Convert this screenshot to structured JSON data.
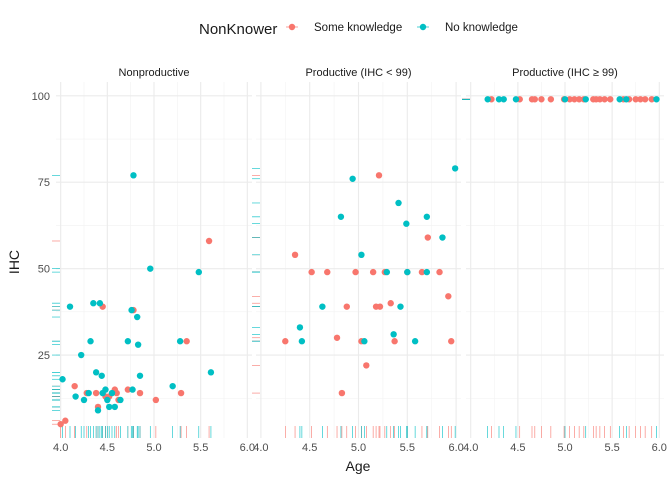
{
  "chart_data": {
    "type": "scatter",
    "xlabel": "Age",
    "ylabel": "IHC",
    "legend": {
      "title": "NonKnower",
      "position": "top",
      "entries": [
        {
          "name": "Some knowledge",
          "color": "#F8766D"
        },
        {
          "name": "No knowledge",
          "color": "#00BFC4"
        }
      ]
    },
    "xlim": [
      3.95,
      6.05
    ],
    "ylim": [
      1,
      104
    ],
    "x_ticks": [
      4.0,
      4.5,
      5.0,
      5.5,
      6.0
    ],
    "x_tick_labels": [
      "4.0",
      "4.5",
      "5.0",
      "5.5",
      "6.0"
    ],
    "y_ticks": [
      25,
      50,
      75,
      100
    ],
    "y_tick_labels": [
      "25",
      "50",
      "75",
      "100"
    ],
    "grid": true,
    "rug": true,
    "panels": [
      {
        "strip": "Nonproductive",
        "series": [
          {
            "name": "Some knowledge",
            "points": [
              [
                4.0,
                5
              ],
              [
                4.05,
                6
              ],
              [
                4.15,
                16
              ],
              [
                4.28,
                14
              ],
              [
                4.38,
                14
              ],
              [
                4.4,
                10
              ],
              [
                4.45,
                39
              ],
              [
                4.48,
                13
              ],
              [
                4.52,
                13
              ],
              [
                4.58,
                15
              ],
              [
                4.6,
                14
              ],
              [
                4.62,
                12
              ],
              [
                4.72,
                15
              ],
              [
                4.78,
                38
              ],
              [
                4.85,
                14
              ],
              [
                5.02,
                12
              ],
              [
                5.29,
                14
              ],
              [
                5.35,
                29
              ],
              [
                5.59,
                58
              ]
            ]
          },
          {
            "name": "No knowledge",
            "points": [
              [
                4.02,
                18
              ],
              [
                4.1,
                39
              ],
              [
                4.16,
                13
              ],
              [
                4.22,
                25
              ],
              [
                4.25,
                12
              ],
              [
                4.3,
                14
              ],
              [
                4.32,
                29
              ],
              [
                4.35,
                40
              ],
              [
                4.38,
                20
              ],
              [
                4.4,
                9
              ],
              [
                4.42,
                40
              ],
              [
                4.44,
                19
              ],
              [
                4.45,
                14
              ],
              [
                4.48,
                15
              ],
              [
                4.5,
                12
              ],
              [
                4.52,
                10
              ],
              [
                4.55,
                14
              ],
              [
                4.58,
                10
              ],
              [
                4.64,
                12
              ],
              [
                4.72,
                29
              ],
              [
                4.76,
                38
              ],
              [
                4.78,
                77
              ],
              [
                4.82,
                36
              ],
              [
                4.83,
                28
              ],
              [
                4.85,
                19
              ],
              [
                4.96,
                50
              ],
              [
                5.2,
                16
              ],
              [
                5.28,
                29
              ],
              [
                5.48,
                49
              ],
              [
                5.61,
                20
              ],
              [
                4.77,
                15
              ]
            ]
          }
        ]
      },
      {
        "strip": "Productive (IHC < 99)",
        "series": [
          {
            "name": "Some knowledge",
            "points": [
              [
                4.25,
                29
              ],
              [
                4.35,
                54
              ],
              [
                4.52,
                49
              ],
              [
                4.68,
                49
              ],
              [
                4.78,
                30
              ],
              [
                4.83,
                14
              ],
              [
                4.88,
                39
              ],
              [
                4.97,
                49
              ],
              [
                5.03,
                29
              ],
              [
                5.08,
                22
              ],
              [
                5.15,
                49
              ],
              [
                5.18,
                39
              ],
              [
                5.21,
                77
              ],
              [
                5.22,
                39
              ],
              [
                5.27,
                49
              ],
              [
                5.33,
                40
              ],
              [
                5.37,
                29
              ],
              [
                5.5,
                49
              ],
              [
                5.65,
                49
              ],
              [
                5.71,
                59
              ],
              [
                5.83,
                49
              ],
              [
                5.92,
                42
              ],
              [
                5.95,
                29
              ]
            ]
          },
          {
            "name": "No knowledge",
            "points": [
              [
                4.4,
                33
              ],
              [
                4.42,
                29
              ],
              [
                4.63,
                39
              ],
              [
                4.82,
                65
              ],
              [
                4.94,
                76
              ],
              [
                5.03,
                54
              ],
              [
                5.06,
                29
              ],
              [
                5.29,
                49
              ],
              [
                5.36,
                31
              ],
              [
                5.41,
                69
              ],
              [
                5.43,
                39
              ],
              [
                5.49,
                63
              ],
              [
                5.5,
                49
              ],
              [
                5.58,
                29
              ],
              [
                5.7,
                49
              ],
              [
                5.7,
                65
              ],
              [
                5.86,
                59
              ],
              [
                5.99,
                79
              ]
            ]
          }
        ]
      },
      {
        "strip": "Productive (IHC ≥ 99)",
        "series": [
          {
            "name": "Some knowledge",
            "points": [
              [
                4.22,
                99
              ],
              [
                4.52,
                99
              ],
              [
                4.65,
                99
              ],
              [
                4.68,
                99
              ],
              [
                4.75,
                99
              ],
              [
                4.85,
                99
              ],
              [
                4.99,
                99
              ],
              [
                5.05,
                99
              ],
              [
                5.1,
                99
              ],
              [
                5.15,
                99
              ],
              [
                5.2,
                99
              ],
              [
                5.3,
                99
              ],
              [
                5.33,
                99
              ],
              [
                5.37,
                99
              ],
              [
                5.42,
                99
              ],
              [
                5.48,
                99
              ],
              [
                5.62,
                99
              ],
              [
                5.68,
                99
              ],
              [
                5.75,
                99
              ],
              [
                5.8,
                99
              ],
              [
                5.85,
                99
              ],
              [
                5.92,
                99
              ]
            ]
          },
          {
            "name": "No knowledge",
            "points": [
              [
                4.18,
                99
              ],
              [
                4.3,
                99
              ],
              [
                4.35,
                99
              ],
              [
                4.48,
                99
              ],
              [
                5.0,
                99
              ],
              [
                5.22,
                99
              ],
              [
                5.58,
                99
              ],
              [
                5.65,
                99
              ],
              [
                5.97,
                99
              ]
            ]
          }
        ]
      }
    ]
  }
}
